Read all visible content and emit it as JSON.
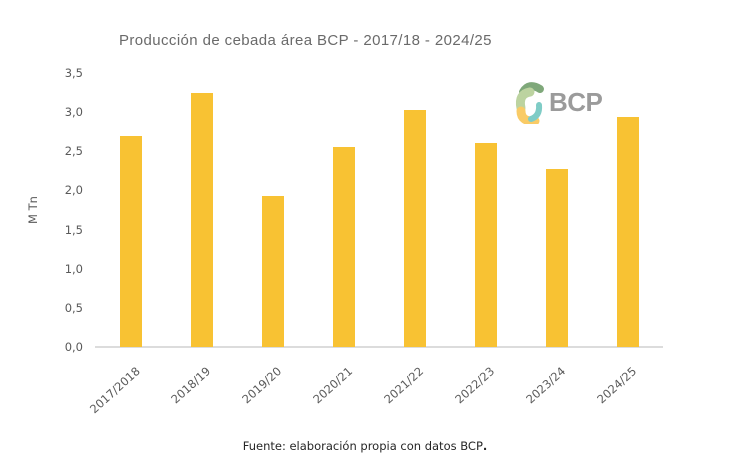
{
  "logo": {
    "text": "BCP"
  },
  "footer": {
    "text": "Fuente: elaboración propia con datos BCP",
    "period": "."
  },
  "colors": {
    "bar": "#F8C233",
    "axis_line": "#DCDCDC",
    "label_text": "#595959",
    "title_text": "#6A6A6A",
    "footer_text": "#262626",
    "logo_text": "#9B9B9B",
    "logo_dark_green": "#7FA87A",
    "logo_light_green": "#BCD3A0",
    "logo_yellow": "#F9CB66",
    "logo_teal": "#7FCCC6"
  },
  "chart_data": {
    "type": "bar",
    "title": "Producción de cebada área BCP - 2017/18 - 2024/25",
    "categories": [
      "2017/2018",
      "2018/19",
      "2019/20",
      "2020/21",
      "2021/22",
      "2022/23",
      "2023/24",
      "2024/25"
    ],
    "values": [
      2.7,
      3.25,
      1.93,
      2.55,
      3.03,
      2.6,
      2.28,
      2.94
    ],
    "xlabel": "",
    "ylabel": "M Tn",
    "ylim": [
      0,
      3.5
    ],
    "ytick_step": 0.5,
    "ytick_labels": [
      "0,0",
      "0,5",
      "1,0",
      "1,5",
      "2,0",
      "2,5",
      "3,0",
      "3,5"
    ],
    "grid": false,
    "legend_position": "none",
    "bar_color": "#F8C233",
    "source_note": "Fuente: elaboración propia con datos BCP."
  }
}
